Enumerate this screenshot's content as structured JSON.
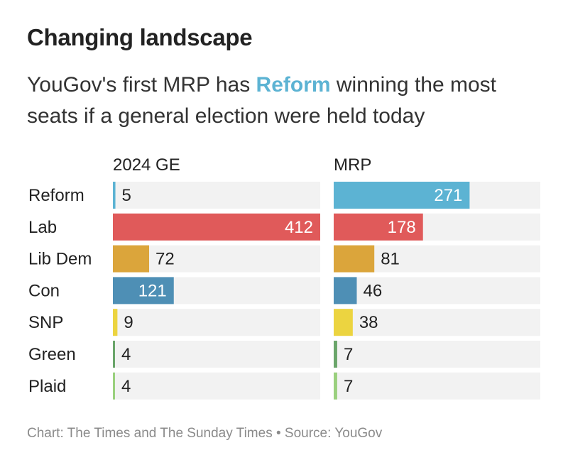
{
  "header": {
    "title": "Changing landscape",
    "subtitle_pre": "YouGov's first MRP has ",
    "subtitle_highlight": "Reform",
    "subtitle_post": " winning the most seats if a general election were held today"
  },
  "footer": {
    "source": "Chart: The Times and The Sunday Times • Source: YouGov"
  },
  "colors": {
    "reform": "#5cb3d3",
    "lab": "#e05a5a",
    "libdem": "#dba53b",
    "con": "#4e8fb5",
    "snp": "#ecd440",
    "green": "#6aa56a",
    "plaid": "#9ad07e",
    "track": "#f2f2f2",
    "text": "#222222"
  },
  "chart_data": {
    "type": "bar",
    "orientation": "horizontal",
    "categories": [
      "Reform",
      "Lab",
      "Lib Dem",
      "Con",
      "SNP",
      "Green",
      "Plaid"
    ],
    "series": [
      {
        "name": "2024 GE",
        "values": [
          5,
          412,
          72,
          121,
          9,
          4,
          4
        ]
      },
      {
        "name": "MRP",
        "values": [
          271,
          178,
          81,
          46,
          38,
          7,
          7
        ]
      }
    ],
    "bar_colors": [
      "#5cb3d3",
      "#e05a5a",
      "#dba53b",
      "#4e8fb5",
      "#ecd440",
      "#6aa56a",
      "#9ad07e"
    ],
    "label_inside": [
      false,
      true,
      true,
      true,
      false,
      false,
      false
    ],
    "xlim": [
      0,
      412
    ],
    "title": "Changing landscape",
    "xlabel": "",
    "ylabel": ""
  }
}
